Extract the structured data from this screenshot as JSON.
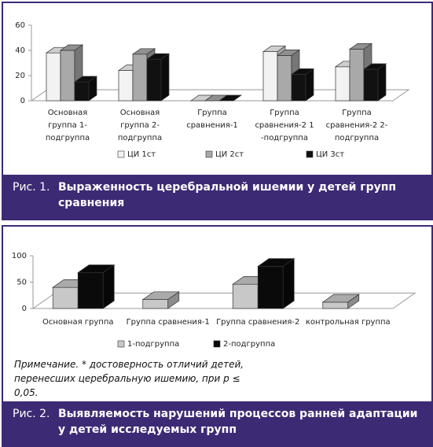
{
  "chart_data": [
    {
      "type": "bar3d",
      "categories": [
        "Основная группа 1-подгруппа",
        "Основная группа 2-подгруппа",
        "Группа сравнения-1",
        "Группа сравнения-2 1 -подгруппа",
        "Группа сравнения-2 2-подгруппа"
      ],
      "series": [
        {
          "name": "ЦИ 1ст",
          "color": "#f2f2f2",
          "values": [
            38,
            24,
            0,
            39,
            27
          ]
        },
        {
          "name": "ЦИ 2ст",
          "color": "#a9a9a9",
          "values": [
            40,
            37,
            0,
            36,
            41
          ]
        },
        {
          "name": "ЦИ 3ст",
          "color": "#111111",
          "values": [
            15,
            33,
            0,
            21,
            25
          ]
        }
      ],
      "ylim": [
        0,
        60
      ],
      "yticks": [
        0,
        20,
        40,
        60
      ],
      "grid": false
    },
    {
      "type": "bar3d",
      "categories": [
        "Основная группа",
        "Группа сравнения-1",
        "Группа сравнения-2",
        "контрольная группа"
      ],
      "series": [
        {
          "name": "1-подгруппа",
          "color": "#c8c8c8",
          "values": [
            40,
            17,
            46,
            12
          ]
        },
        {
          "name": "2-подгруппа",
          "color": "#0a0a0a",
          "values": [
            68,
            null,
            80,
            null
          ]
        }
      ],
      "ylim": [
        0,
        100
      ],
      "yticks": [
        0,
        50,
        100
      ],
      "grid": false
    }
  ],
  "captions": [
    {
      "label": "Рис. 1.",
      "text": "Выраженность церебральной ишемии у детей групп сравнения"
    },
    {
      "label": "Рис. 2.",
      "text": "Выявляемость нарушений процессов ранней адаптации у детей исследуемых групп"
    }
  ],
  "note": "Примечание. * достоверность отличий детей, перенесших церебральную ишемию, при p ≤ 0,05."
}
